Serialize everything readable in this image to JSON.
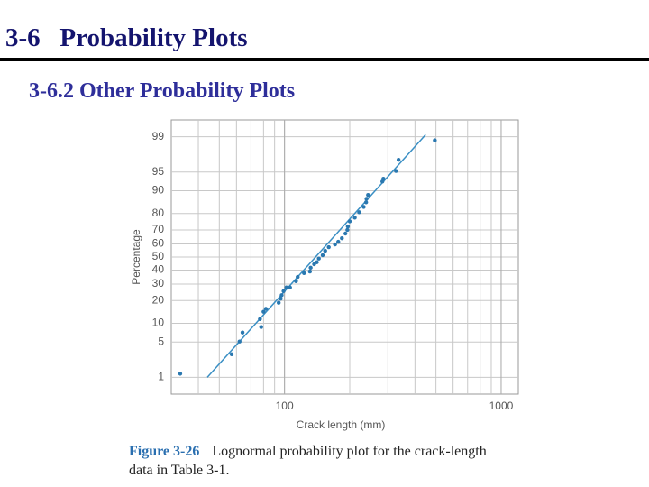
{
  "slide": {
    "title": "3-6   Probability Plots",
    "subtitle": "3-6.2 Other Probability Plots"
  },
  "chart_data": {
    "type": "scatter",
    "x_label": "Crack length (mm)",
    "y_label": "Percentage",
    "xscale": "log",
    "yscale": "probability",
    "grid": true,
    "xlim": [
      30,
      1200
    ],
    "xticks": [
      100,
      1000
    ],
    "ylim": [
      0.4,
      99.6
    ],
    "yticks": [
      1,
      5,
      10,
      20,
      30,
      40,
      50,
      60,
      70,
      80,
      90,
      95,
      99
    ],
    "points": {
      "color": "#2a78b0",
      "x": [
        33,
        57,
        62,
        64,
        78,
        77,
        80,
        82,
        94,
        96,
        97,
        99,
        102,
        106,
        113,
        115,
        123,
        131,
        132,
        137,
        141,
        144,
        150,
        154,
        160,
        171,
        177,
        184,
        191,
        195,
        196,
        200,
        211,
        221,
        232,
        238,
        239,
        243,
        283,
        286,
        327,
        336,
        494
      ],
      "values": [
        1.2,
        3.0,
        5.1,
        7.2,
        8.8,
        11.5,
        14.5,
        15.8,
        18.8,
        21,
        23,
        25.5,
        27.8,
        27.8,
        32,
        35,
        37.8,
        39,
        41.8,
        44.5,
        46,
        48.8,
        51.4,
        54.8,
        57.6,
        59.6,
        61.6,
        64.2,
        67.5,
        70,
        72.3,
        75.5,
        77.7,
        80.7,
        83.4,
        85.5,
        87,
        88.5,
        92.8,
        93.5,
        95.2,
        97,
        98.8
      ]
    },
    "fit": {
      "color": "#3a8fc4",
      "x": [
        44,
        448
      ],
      "values": [
        1.0,
        99.1
      ]
    }
  },
  "caption": {
    "label": "Figure 3-26",
    "text": "Lognormal probability plot for the crack-length data in Table 3-1."
  }
}
